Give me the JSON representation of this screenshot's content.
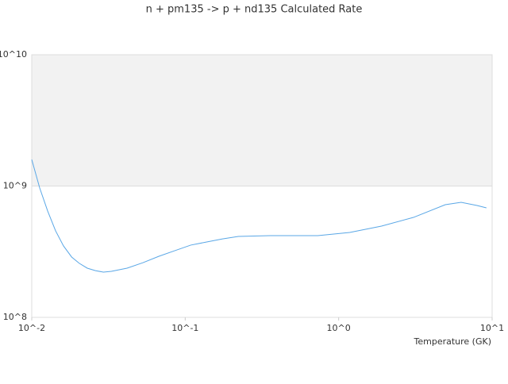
{
  "chart_data": {
    "type": "line",
    "title": "n + pm135 -> p + nd135 Calculated Rate",
    "x_label": "Temperature (GK)",
    "xscale": "log",
    "yscale": "log",
    "xlim": [
      0.01,
      10
    ],
    "ylim": [
      100000000,
      10000000000
    ],
    "xticks": [
      {
        "value": 0.01,
        "label": "10^-2"
      },
      {
        "value": 0.1,
        "label": "10^-1"
      },
      {
        "value": 1,
        "label": "10^0"
      },
      {
        "value": 10,
        "label": "10^1"
      }
    ],
    "yticks": [
      {
        "value": 100000000,
        "label": "10^8"
      },
      {
        "value": 1000000000,
        "label": "10^9"
      },
      {
        "value": 10000000000,
        "label": "10^10"
      }
    ],
    "highlight_range": [
      1000000000,
      10000000000
    ],
    "grid": true,
    "series": [
      {
        "color": "#5aa7e6",
        "x": [
          0.01,
          0.01127,
          0.0127,
          0.0143,
          0.0161,
          0.0182,
          0.0204,
          0.023,
          0.026,
          0.0293,
          0.033,
          0.0418,
          0.0531,
          0.0674,
          0.0856,
          0.1087,
          0.138,
          0.175,
          0.222,
          0.358,
          0.731,
          1.18,
          1.9,
          3.07,
          4.95,
          6.28,
          7.97,
          9.18
        ],
        "values": [
          1590000000,
          966000000,
          645000000,
          456000000,
          350000000,
          288000000,
          258000000,
          237000000,
          227000000,
          221000000,
          224000000,
          237000000,
          261000000,
          292000000,
          322000000,
          355000000,
          375000000,
          396000000,
          413000000,
          419000000,
          419000000,
          443000000,
          495000000,
          577000000,
          721000000,
          752000000,
          711000000,
          682000000
        ]
      }
    ]
  }
}
